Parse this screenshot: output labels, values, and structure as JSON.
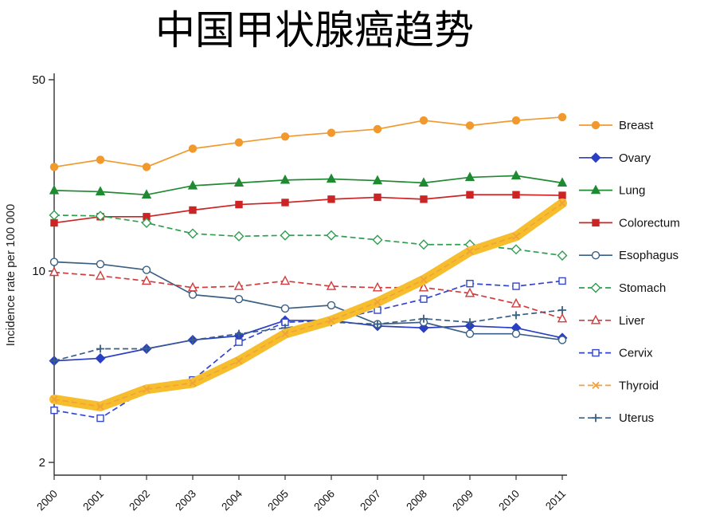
{
  "chart_data": {
    "type": "line",
    "title": "中国甲状腺癌趋势",
    "ylabel": "Incidence rate per 100 000",
    "xlabel": "",
    "y_scale": "log",
    "ylim": [
      2,
      50
    ],
    "y_ticks": [
      2,
      10,
      50
    ],
    "grid": false,
    "legend_position": "right",
    "x": [
      2000,
      2001,
      2002,
      2003,
      2004,
      2005,
      2006,
      2007,
      2008,
      2009,
      2010,
      2011
    ],
    "series": [
      {
        "name": "Breast",
        "color": "#F2992E",
        "dash": "solid",
        "marker": "circle",
        "fill": "filled",
        "values": [
          24,
          25.5,
          24,
          28,
          29.5,
          31,
          32,
          33,
          35.5,
          34,
          35.5,
          36.5
        ]
      },
      {
        "name": "Ovary",
        "color": "#2B3FC4",
        "dash": "solid",
        "marker": "diamond",
        "fill": "filled",
        "values": [
          4.7,
          4.8,
          5.2,
          5.6,
          5.8,
          6.6,
          6.6,
          6.3,
          6.2,
          6.3,
          6.2,
          5.7
        ]
      },
      {
        "name": "Lung",
        "color": "#1F8A32",
        "dash": "solid",
        "marker": "triangle",
        "fill": "filled",
        "values": [
          19.7,
          19.5,
          19,
          20.5,
          21,
          21.5,
          21.7,
          21.4,
          21,
          22,
          22.3,
          21
        ]
      },
      {
        "name": "Colorectum",
        "color": "#CC2424",
        "dash": "solid",
        "marker": "square",
        "fill": "filled",
        "values": [
          15,
          15.8,
          15.8,
          16.7,
          17.5,
          17.8,
          18.3,
          18.6,
          18.3,
          19,
          19,
          18.9
        ]
      },
      {
        "name": "Esophagus",
        "color": "#3A5F82",
        "dash": "solid",
        "marker": "circle",
        "fill": "open",
        "values": [
          10.8,
          10.6,
          10.1,
          8.2,
          7.9,
          7.3,
          7.5,
          6.4,
          6.5,
          5.9,
          5.9,
          5.6
        ]
      },
      {
        "name": "Stomach",
        "color": "#2E9E4F",
        "dash": "dashed",
        "marker": "diamond",
        "fill": "open",
        "values": [
          16,
          15.9,
          15,
          13.7,
          13.4,
          13.5,
          13.5,
          13,
          12.5,
          12.5,
          12,
          11.4
        ]
      },
      {
        "name": "Liver",
        "color": "#D23B3B",
        "dash": "dashed",
        "marker": "triangle",
        "fill": "open",
        "values": [
          9.9,
          9.6,
          9.2,
          8.7,
          8.8,
          9.2,
          8.8,
          8.7,
          8.7,
          8.3,
          7.6,
          6.7
        ]
      },
      {
        "name": "Cervix",
        "color": "#3346CF",
        "dash": "dashed",
        "marker": "square",
        "fill": "open",
        "values": [
          3.1,
          2.9,
          3.7,
          4.0,
          5.5,
          6.5,
          6.6,
          7.2,
          7.9,
          9.0,
          8.8,
          9.2
        ]
      },
      {
        "name": "Thyroid",
        "color": "#F2A23C",
        "dash": "dashed",
        "marker": "x",
        "fill": "open",
        "values": [
          3.4,
          3.2,
          3.7,
          3.9,
          4.7,
          5.9,
          6.6,
          7.7,
          9.3,
          11.8,
          13.4,
          17.7
        ],
        "highlight": true,
        "highlight_color": "#F6BE2C"
      },
      {
        "name": "Uterus",
        "color": "#3A5F82",
        "dash": "dashed",
        "marker": "plus",
        "fill": "open",
        "values": [
          4.7,
          5.2,
          5.2,
          5.6,
          5.9,
          6.2,
          6.5,
          6.4,
          6.7,
          6.5,
          6.9,
          7.2
        ]
      }
    ]
  }
}
